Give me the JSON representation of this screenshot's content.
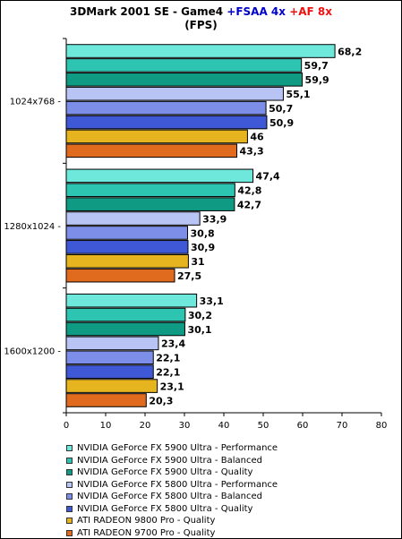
{
  "chart_data": {
    "type": "bar",
    "orientation": "horizontal",
    "title": {
      "main": "3DMark 2001 SE - Game4",
      "fsaa": "+FSAA 4x",
      "af": "+AF 8x",
      "subtitle": "(FPS)"
    },
    "categories": [
      "1024x768  -",
      "1280x1024 -",
      "1600x1200 -"
    ],
    "xlim": [
      0,
      80
    ],
    "xticks": [
      "0",
      "10",
      "20",
      "30",
      "40",
      "50",
      "60",
      "70",
      "80"
    ],
    "grid": false,
    "legend_position": "bottom",
    "series": [
      {
        "name": "NVIDIA GeForce FX 5900 Ultra - Performance",
        "color": "#6fe8dc",
        "values": [
          68.2,
          47.4,
          33.1
        ],
        "labels": [
          "68,2",
          "47,4",
          "33,1"
        ]
      },
      {
        "name": "NVIDIA GeForce FX 5900 Ultra - Balanced",
        "color": "#2ec4b2",
        "values": [
          59.7,
          42.8,
          30.2
        ],
        "labels": [
          "59,7",
          "42,8",
          "30,2"
        ]
      },
      {
        "name": "NVIDIA GeForce FX 5900 Ultra - Quality",
        "color": "#0f9a84",
        "values": [
          59.9,
          42.7,
          30.1
        ],
        "labels": [
          "59,9",
          "42,7",
          "30,1"
        ]
      },
      {
        "name": "NVIDIA GeForce FX 5800 Ultra - Performance",
        "color": "#b8c4f4",
        "values": [
          55.1,
          33.9,
          23.4
        ],
        "labels": [
          "55,1",
          "33,9",
          "23,4"
        ]
      },
      {
        "name": "NVIDIA GeForce FX 5800 Ultra - Balanced",
        "color": "#7c8ee8",
        "values": [
          50.7,
          30.8,
          22.1
        ],
        "labels": [
          "50,7",
          "30,8",
          "22,1"
        ]
      },
      {
        "name": "NVIDIA GeForce FX 5800 Ultra - Quality",
        "color": "#3f58d6",
        "values": [
          50.9,
          30.9,
          22.1
        ],
        "labels": [
          "50,9",
          "30,9",
          "22,1"
        ]
      },
      {
        "name": "ATI RADEON 9800 Pro - Quality",
        "color": "#e6b41e",
        "values": [
          46,
          31,
          23.1
        ],
        "labels": [
          "46",
          "31",
          "23,1"
        ]
      },
      {
        "name": "ATI RADEON 9700 Pro - Quality",
        "color": "#e06a1e",
        "values": [
          43.3,
          27.5,
          20.3
        ],
        "labels": [
          "43,3",
          "27,5",
          "20,3"
        ]
      }
    ]
  }
}
